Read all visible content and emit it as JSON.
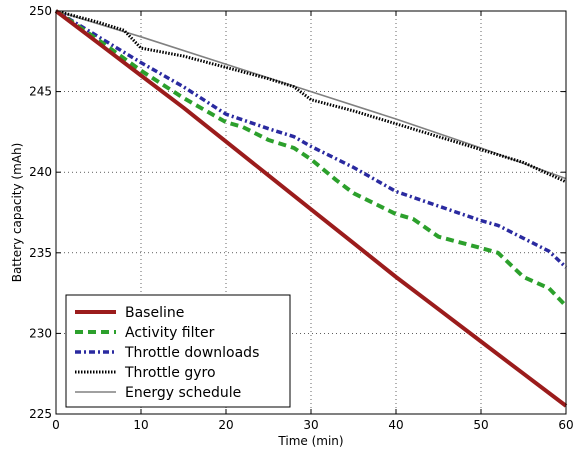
{
  "chart_data": {
    "type": "line",
    "title": "",
    "xlabel": "Time (min)",
    "ylabel": "Battery capacity (mAh)",
    "xlim": [
      0,
      60
    ],
    "ylim": [
      225,
      250
    ],
    "xticks": [
      0,
      10,
      20,
      30,
      40,
      50,
      60
    ],
    "yticks": [
      225,
      230,
      235,
      240,
      245,
      250
    ],
    "grid": true,
    "legend_position": "bottom-left",
    "series": [
      {
        "name": "Baseline",
        "color": "#9b1c1c",
        "style": "solid-thick",
        "x": [
          0,
          5,
          10,
          15,
          20,
          25,
          30,
          35,
          40,
          45,
          50,
          55,
          60
        ],
        "y": [
          250,
          248.0,
          246.0,
          244.0,
          241.9,
          239.8,
          237.7,
          235.6,
          233.5,
          231.5,
          229.5,
          227.5,
          225.5
        ]
      },
      {
        "name": "Activity filter",
        "color": "#2ca02c",
        "style": "dashed",
        "x": [
          0,
          5,
          10,
          15,
          20,
          22,
          25,
          28,
          30,
          33,
          35,
          40,
          42,
          45,
          50,
          52,
          55,
          58,
          60
        ],
        "y": [
          250,
          248.2,
          246.3,
          244.6,
          243.1,
          242.8,
          242.0,
          241.5,
          240.8,
          239.5,
          238.7,
          237.4,
          237.1,
          236.0,
          235.3,
          235.0,
          233.5,
          232.8,
          231.7
        ]
      },
      {
        "name": "Throttle downloads",
        "color": "#2a2aa0",
        "style": "dashdot",
        "x": [
          0,
          5,
          10,
          15,
          20,
          25,
          28,
          30,
          35,
          40,
          45,
          50,
          52,
          55,
          58,
          60
        ],
        "y": [
          250,
          248.4,
          246.8,
          245.3,
          243.6,
          242.7,
          242.2,
          241.6,
          240.3,
          238.8,
          237.9,
          237.0,
          236.7,
          235.9,
          235.1,
          234.1
        ]
      },
      {
        "name": "Throttle gyro",
        "color": "#000000",
        "style": "dotted",
        "x": [
          0,
          5,
          8,
          10,
          15,
          20,
          25,
          28,
          30,
          35,
          40,
          45,
          50,
          55,
          60
        ],
        "y": [
          250,
          249.3,
          248.8,
          247.7,
          247.2,
          246.5,
          245.8,
          245.3,
          244.5,
          243.8,
          243.0,
          242.2,
          241.4,
          240.6,
          239.4
        ]
      },
      {
        "name": "Energy schedule",
        "color": "#808080",
        "style": "solid-thin",
        "x": [
          0,
          10,
          20,
          30,
          40,
          50,
          60
        ],
        "y": [
          250,
          248.4,
          246.7,
          245.0,
          243.3,
          241.5,
          239.6
        ]
      }
    ]
  }
}
